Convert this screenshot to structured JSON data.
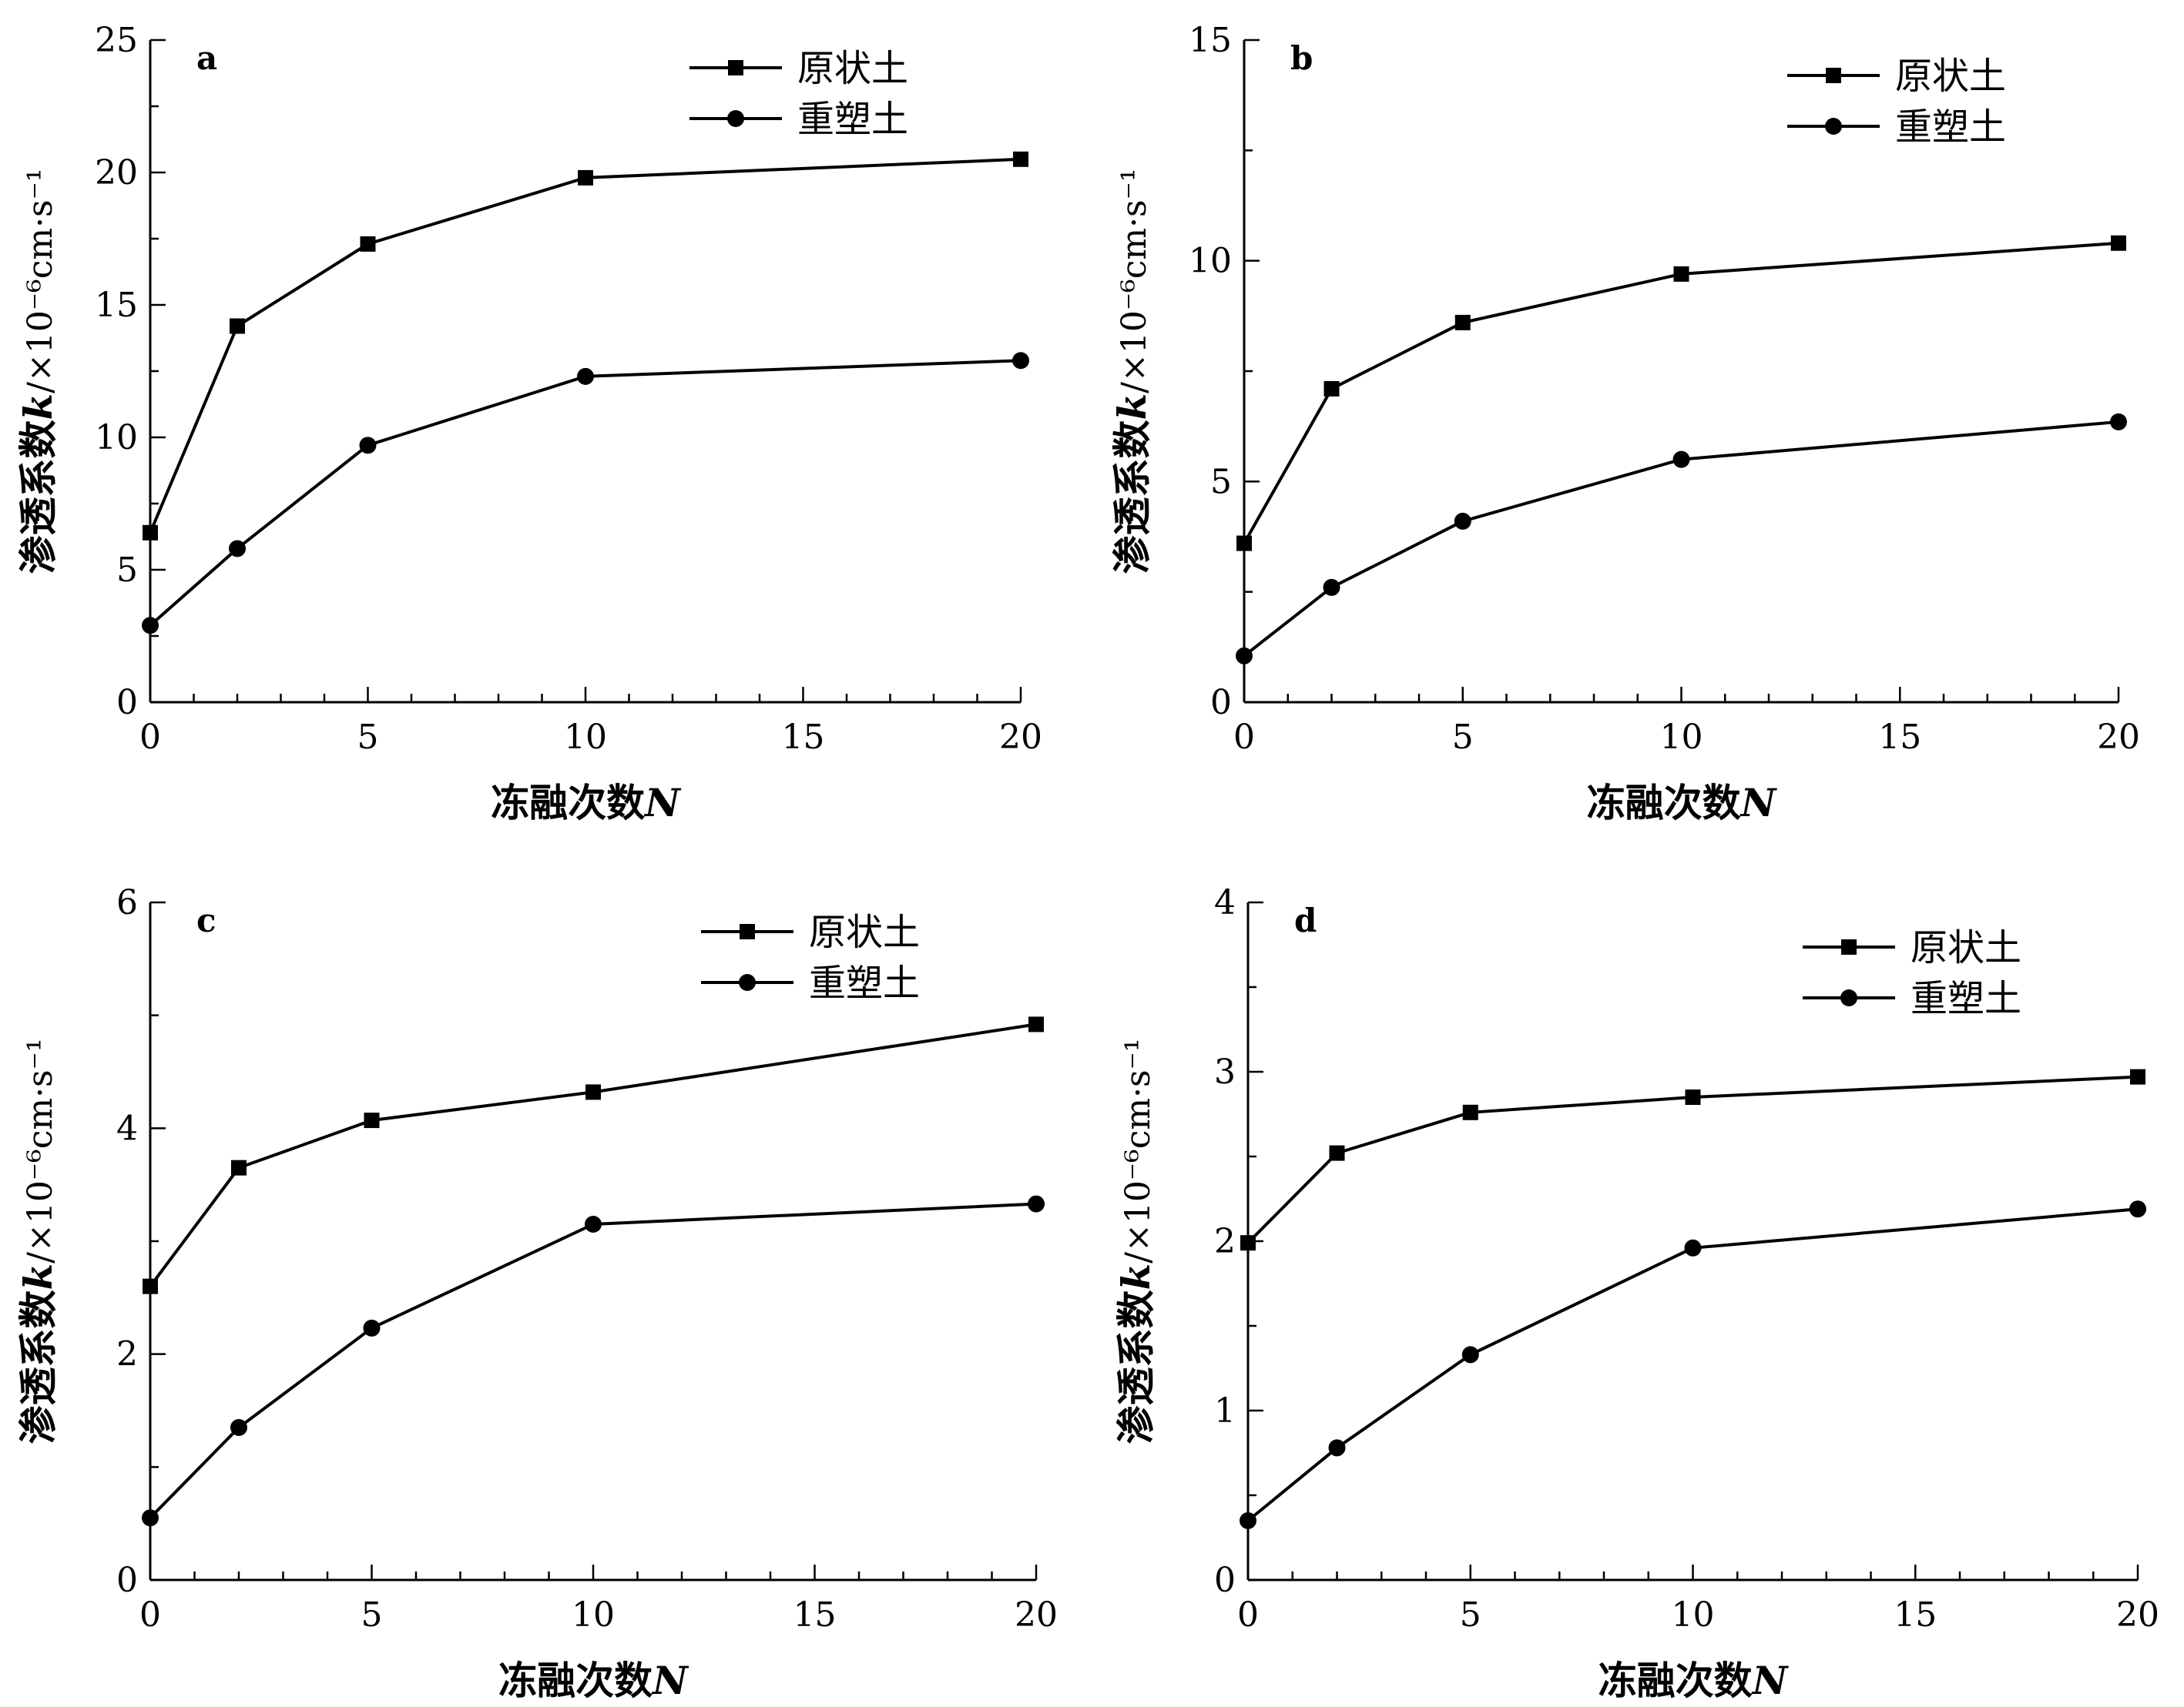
{
  "chart_data": [
    {
      "type": "line",
      "panel_label": "a",
      "x": [
        0,
        2,
        5,
        10,
        20
      ],
      "x_ticks": [
        0,
        5,
        10,
        15,
        20
      ],
      "y_ticks": [
        0,
        5,
        10,
        15,
        20,
        25
      ],
      "ylim": [
        0,
        25
      ],
      "xlabel_text": "冻融次数",
      "xlabel_var": "N",
      "ylabel_text": "渗透系数",
      "ylabel_var": "k",
      "ylabel_unit": "/×10⁻⁶cm·s⁻¹",
      "legend_position": "top-right",
      "series": [
        {
          "name": "原状土",
          "marker": "square",
          "values": [
            6.4,
            14.2,
            17.3,
            19.8,
            20.5
          ]
        },
        {
          "name": "重塑土",
          "marker": "circle",
          "values": [
            2.9,
            5.8,
            9.7,
            12.3,
            12.9
          ]
        }
      ]
    },
    {
      "type": "line",
      "panel_label": "b",
      "x": [
        0,
        2,
        5,
        10,
        20
      ],
      "x_ticks": [
        0,
        5,
        10,
        15,
        20
      ],
      "y_ticks": [
        0,
        5,
        10,
        15
      ],
      "ylim": [
        0,
        15
      ],
      "xlabel_text": "冻融次数",
      "xlabel_var": "N",
      "ylabel_text": "渗透系数",
      "ylabel_var": "k",
      "ylabel_unit": "/×10⁻⁶cm·s⁻¹",
      "legend_position": "top-right",
      "series": [
        {
          "name": "原状土",
          "marker": "square",
          "values": [
            3.6,
            7.1,
            8.6,
            9.7,
            10.4
          ]
        },
        {
          "name": "重塑土",
          "marker": "circle",
          "values": [
            1.05,
            2.6,
            4.1,
            5.5,
            6.35
          ]
        }
      ]
    },
    {
      "type": "line",
      "panel_label": "c",
      "x": [
        0,
        2,
        5,
        10,
        20
      ],
      "x_ticks": [
        0,
        5,
        10,
        15,
        20
      ],
      "y_ticks": [
        0,
        2,
        4,
        6
      ],
      "ylim": [
        0,
        6
      ],
      "xlabel_text": "冻融次数",
      "xlabel_var": "N",
      "ylabel_text": "渗透系数",
      "ylabel_var": "k",
      "ylabel_unit": "/×10⁻⁶cm·s⁻¹",
      "legend_position": "top-right",
      "series": [
        {
          "name": "原状土",
          "marker": "square",
          "values": [
            2.6,
            3.65,
            4.07,
            4.32,
            4.92
          ]
        },
        {
          "name": "重塑土",
          "marker": "circle",
          "values": [
            0.55,
            1.35,
            2.23,
            3.15,
            3.33
          ]
        }
      ]
    },
    {
      "type": "line",
      "panel_label": "d",
      "x": [
        0,
        2,
        5,
        10,
        20
      ],
      "x_ticks": [
        0,
        5,
        10,
        15,
        20
      ],
      "y_ticks": [
        0,
        1,
        2,
        3,
        4
      ],
      "ylim": [
        0,
        4
      ],
      "xlabel_text": "冻融次数",
      "xlabel_var": "N",
      "ylabel_text": "渗透系数",
      "ylabel_var": "k",
      "ylabel_unit": "/×10⁻⁶cm·s⁻¹",
      "legend_position": "top-right",
      "series": [
        {
          "name": "原状土",
          "marker": "square",
          "values": [
            1.99,
            2.52,
            2.76,
            2.85,
            2.97
          ]
        },
        {
          "name": "重塑土",
          "marker": "circle",
          "values": [
            0.35,
            0.78,
            1.33,
            1.96,
            2.19
          ]
        }
      ]
    }
  ]
}
